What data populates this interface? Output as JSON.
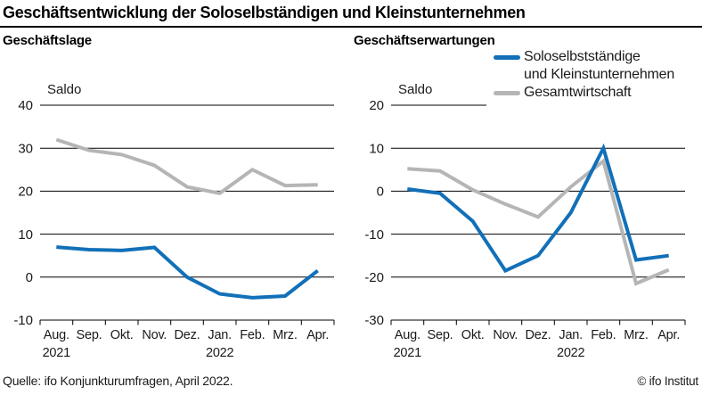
{
  "header": {
    "title": "Geschäftsentwicklung der Soloselbständigen und Kleinstunternehmen"
  },
  "colors": {
    "blue": "#1270b8",
    "gray": "#b5b5b5",
    "grid": "#000000",
    "text": "#1a1a1a"
  },
  "legend": {
    "items": [
      {
        "series": "solo",
        "color": "blue",
        "lines": [
          "Soloselbstständige",
          "und Kleinstunternehmen"
        ]
      },
      {
        "series": "gesamt",
        "color": "gray",
        "lines": [
          "Gesamtwirtschaft"
        ]
      }
    ],
    "position": "top-right-of-right-panel"
  },
  "footer": {
    "source": "Quelle: ifo Konjunkturumfragen, April 2022.",
    "copyright": "© ifo Institut"
  },
  "chart_data": [
    {
      "type": "line",
      "title": "Geschäftslage",
      "ylabel": "Saldo",
      "xlabel": "",
      "grid": true,
      "categories": [
        "Aug.",
        "Sep.",
        "Okt.",
        "Nov.",
        "Dez.",
        "Jan.",
        "Feb.",
        "Mrz.",
        "Apr."
      ],
      "year_labels": [
        {
          "text": "2021",
          "slot": 0
        },
        {
          "text": "2022",
          "slot": 5
        }
      ],
      "ylim": [
        -10,
        40
      ],
      "yticks": [
        40,
        30,
        20,
        10,
        0,
        -10
      ],
      "series": [
        {
          "name": "Soloselbstständige und Kleinstunternehmen",
          "color": "blue",
          "values": [
            7,
            6.4,
            6.2,
            6.9,
            0,
            -3.9,
            -4.8,
            -4.4,
            1.5
          ]
        },
        {
          "name": "Gesamtwirtschaft",
          "color": "gray",
          "values": [
            32,
            29.5,
            28.5,
            26,
            21,
            19.5,
            25,
            21.3,
            21.5
          ]
        }
      ]
    },
    {
      "type": "line",
      "title": "Geschäftserwartungen",
      "ylabel": "Saldo",
      "xlabel": "",
      "grid": true,
      "categories": [
        "Aug.",
        "Sep.",
        "Okt.",
        "Nov.",
        "Dez.",
        "Jan.",
        "Feb.",
        "Mrz.",
        "Apr."
      ],
      "year_labels": [
        {
          "text": "2021",
          "slot": 0
        },
        {
          "text": "2022",
          "slot": 5
        }
      ],
      "ylim": [
        -30,
        20
      ],
      "yticks": [
        20,
        10,
        0,
        -10,
        -20,
        -30
      ],
      "series": [
        {
          "name": "Soloselbstständige und Kleinstunternehmen",
          "color": "blue",
          "values": [
            0.5,
            -0.5,
            -7,
            -18.5,
            -15,
            -5,
            10,
            -16,
            -15
          ]
        },
        {
          "name": "Gesamtwirtschaft",
          "color": "gray",
          "values": [
            5.2,
            4.7,
            0.3,
            -3,
            -6,
            1,
            7,
            -21.5,
            -18.3
          ]
        }
      ]
    }
  ]
}
